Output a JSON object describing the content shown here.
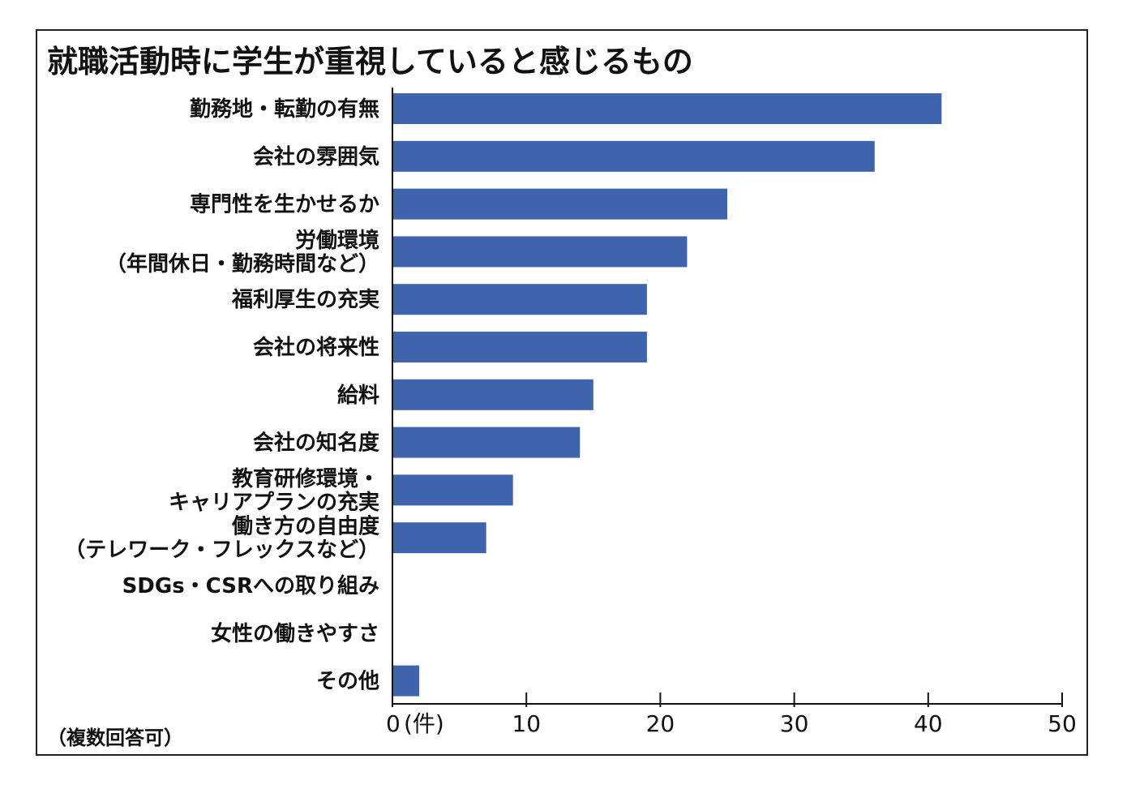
{
  "chart_data": {
    "type": "bar",
    "orientation": "horizontal",
    "title": "就職活動時に学生が重視していると感じるもの",
    "note": "（複数回答可）",
    "x_unit_label": "(件)",
    "categories": [
      [
        "勤務地・転勤の有無"
      ],
      [
        "会社の雰囲気"
      ],
      [
        "専門性を生かせるか"
      ],
      [
        "労働環境",
        "（年間休日・勤務時間など）"
      ],
      [
        "福利厚生の充実"
      ],
      [
        "会社の将来性"
      ],
      [
        "給料"
      ],
      [
        "会社の知名度"
      ],
      [
        "教育研修環境・",
        "キャリアプランの充実"
      ],
      [
        "働き方の自由度",
        "（テレワーク・フレックスなど）"
      ],
      [
        "SDGs・CSRへの取り組み"
      ],
      [
        "女性の働きやすさ"
      ],
      [
        "その他"
      ]
    ],
    "values": [
      41,
      36,
      25,
      22,
      19,
      19,
      15,
      14,
      9,
      7,
      0,
      0,
      2
    ],
    "xlim": [
      0,
      50
    ],
    "xticks": [
      0,
      10,
      20,
      30,
      40,
      50
    ],
    "bar_color": "#3f63ad",
    "grid": false
  }
}
